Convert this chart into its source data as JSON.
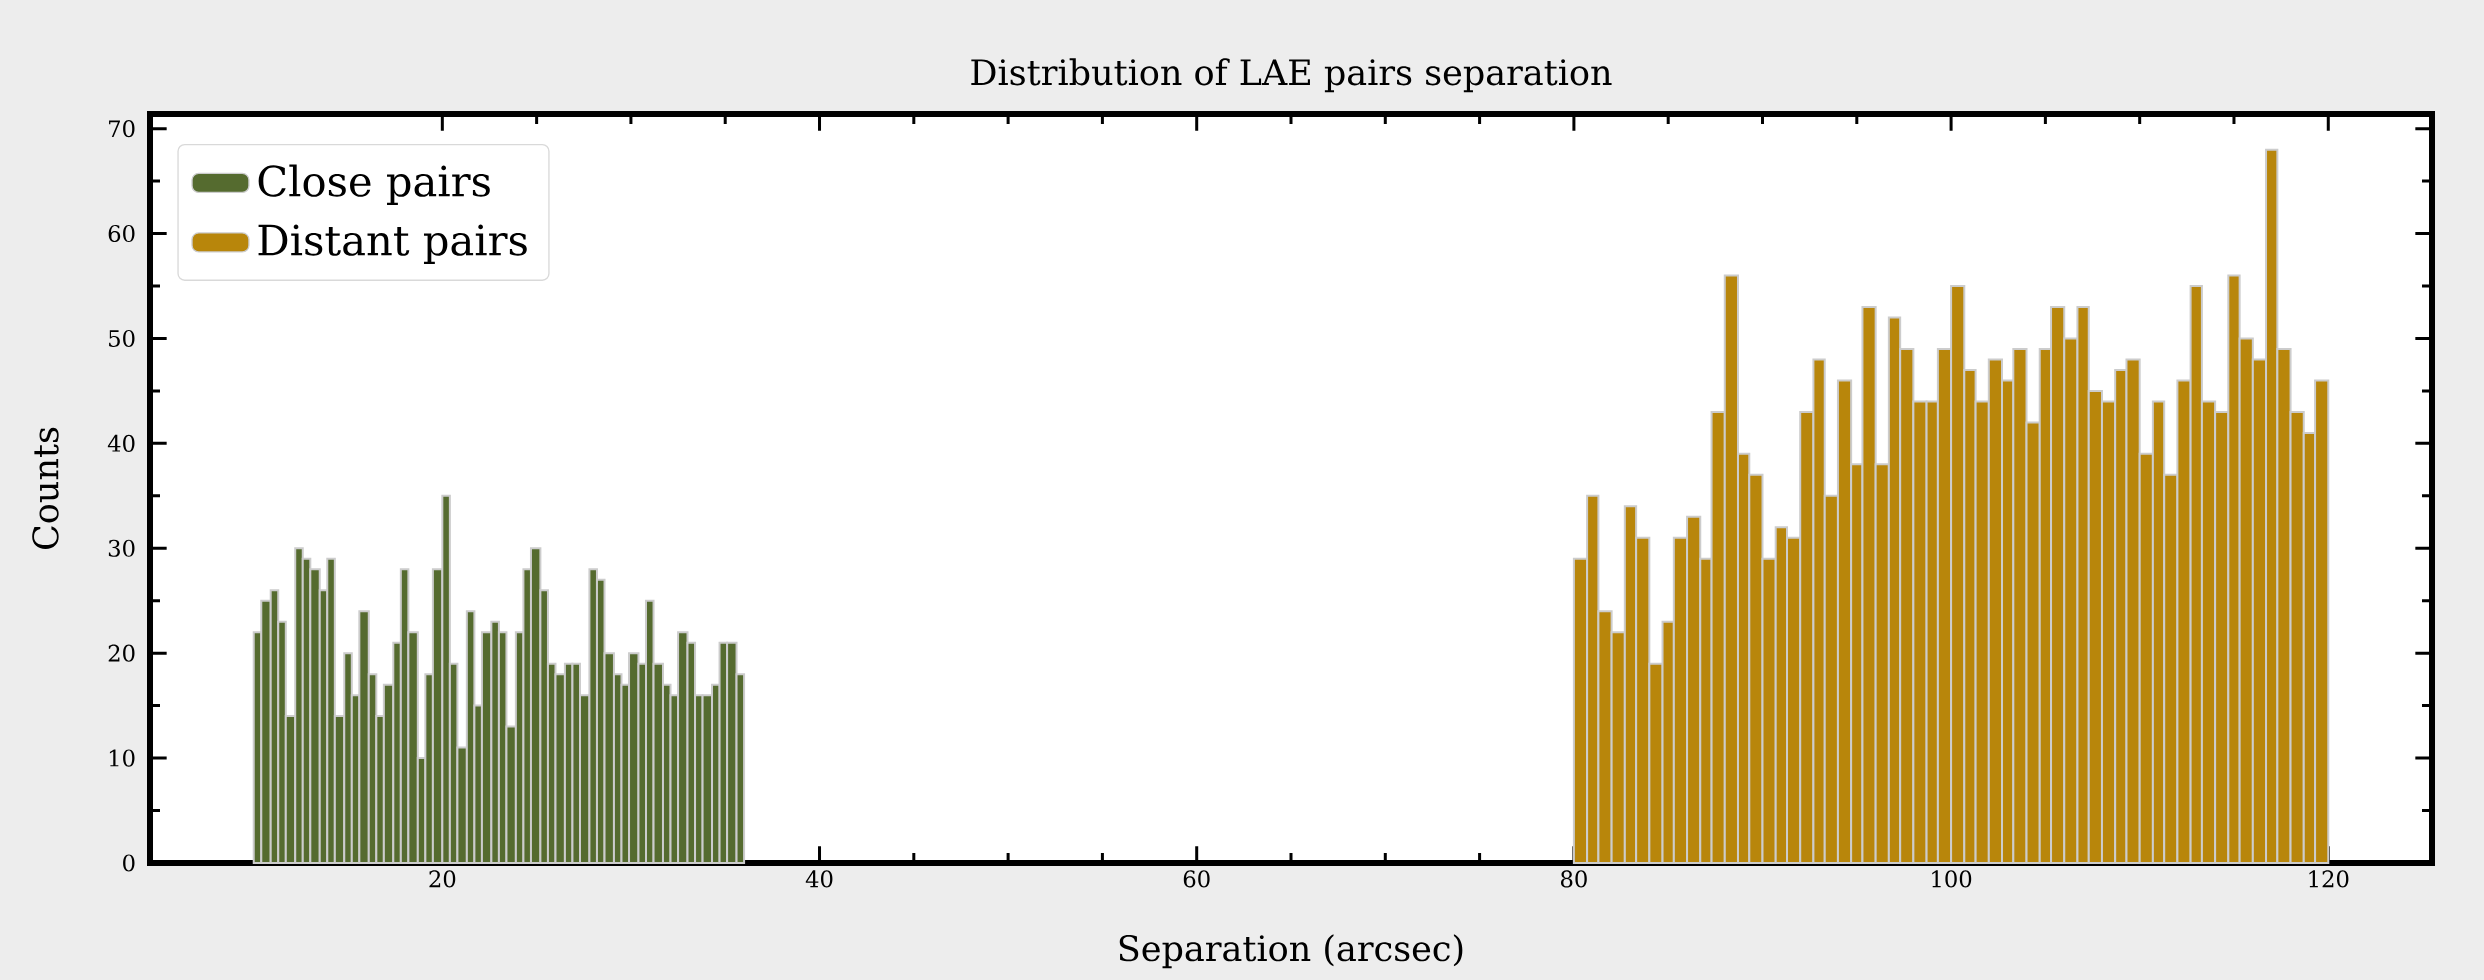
{
  "chart_data": {
    "type": "histogram",
    "title": "Distribution of LAE pairs separation",
    "xlabel": "Separation (arcsec)",
    "ylabel": "Counts",
    "xlim": [
      4.5,
      125.5
    ],
    "ylim": [
      0,
      71.4
    ],
    "xticks": [
      20,
      40,
      60,
      80,
      100,
      120
    ],
    "yticks": [
      0,
      10,
      20,
      30,
      40,
      50,
      60,
      70
    ],
    "legend": "top left",
    "bins": [
      10,
      10.4,
      10.9,
      11.3,
      11.7,
      12.2,
      12.6,
      13,
      13.5,
      13.9,
      14.3,
      14.8,
      15.2,
      15.6,
      16.1,
      16.5,
      16.9,
      17.4,
      17.8,
      18.2,
      18.7,
      19.1,
      19.5,
      20,
      20.4,
      20.8,
      21.3,
      21.7,
      22.1,
      22.6,
      23,
      23.4,
      23.9,
      24.3,
      24.7,
      25.2,
      25.6,
      26,
      26.5,
      26.9,
      27.3,
      27.8,
      28.2,
      28.6,
      29.1,
      29.5,
      29.9,
      30.4,
      30.8,
      31.2,
      31.7,
      32.1,
      32.5,
      33,
      33.4,
      33.8,
      34.3,
      34.7,
      35.1,
      35.6,
      36,
      80,
      80.7,
      81.3,
      82,
      82.7,
      83.3,
      84,
      84.7,
      85.3,
      86,
      86.7,
      87.3,
      88,
      88.7,
      89.3,
      90,
      90.7,
      91.3,
      92,
      92.7,
      93.3,
      94,
      94.7,
      95.3,
      96,
      96.7,
      97.3,
      98,
      98.7,
      99.3,
      100,
      100.7,
      101.3,
      102,
      102.7,
      103.3,
      104,
      104.7,
      105.3,
      106,
      106.7,
      107.3,
      108,
      108.7,
      109.3,
      110,
      110.7,
      111.3,
      112,
      112.7,
      113.3,
      114,
      114.7,
      115.3,
      116,
      116.7,
      117.3,
      118,
      118.7,
      119.3,
      120
    ],
    "series": [
      {
        "name": "Close pairs",
        "color": "#556b2f",
        "values": [
          22,
          25,
          26,
          23,
          14,
          30,
          29,
          28,
          26,
          29,
          14,
          20,
          16,
          24,
          18,
          14,
          17,
          21,
          28,
          22,
          10,
          18,
          28,
          35,
          19,
          11,
          24,
          15,
          22,
          23,
          22,
          13,
          22,
          28,
          30,
          26,
          19,
          18,
          19,
          19,
          16,
          28,
          27,
          20,
          18,
          17,
          20,
          19,
          25,
          19,
          17,
          16,
          22,
          21,
          16,
          16,
          17,
          21,
          21,
          18,
          null,
          null,
          null,
          null,
          null,
          null,
          null,
          null,
          null,
          null,
          null,
          null,
          null,
          null,
          null,
          null,
          null,
          null,
          null,
          null,
          null,
          null,
          null,
          null,
          null,
          null,
          null,
          null,
          null,
          null,
          null,
          null,
          null,
          null,
          null,
          null,
          null,
          null,
          null,
          null,
          null,
          null,
          null,
          null,
          null,
          null,
          null,
          null,
          null,
          null,
          null,
          null,
          null,
          null,
          null,
          null,
          null,
          null,
          null,
          null,
          null
        ]
      },
      {
        "name": "Distant pairs",
        "color": "#b8860b",
        "values": [
          null,
          null,
          null,
          null,
          null,
          null,
          null,
          null,
          null,
          null,
          null,
          null,
          null,
          null,
          null,
          null,
          null,
          null,
          null,
          null,
          null,
          null,
          null,
          null,
          null,
          null,
          null,
          null,
          null,
          null,
          null,
          null,
          null,
          null,
          null,
          null,
          null,
          null,
          null,
          null,
          null,
          null,
          null,
          null,
          null,
          null,
          null,
          null,
          null,
          null,
          null,
          null,
          null,
          null,
          null,
          null,
          null,
          null,
          null,
          null,
          null,
          29,
          35,
          24,
          22,
          34,
          31,
          19,
          23,
          31,
          33,
          29,
          43,
          56,
          39,
          37,
          29,
          32,
          31,
          43,
          48,
          35,
          46,
          38,
          53,
          38,
          52,
          49,
          44,
          44,
          49,
          55,
          47,
          44,
          48,
          46,
          49,
          42,
          49,
          53,
          50,
          53,
          45,
          44,
          47,
          48,
          39,
          44,
          37,
          46,
          55,
          44,
          43,
          56,
          50,
          48,
          68,
          49,
          43,
          41,
          46
        ]
      }
    ]
  }
}
